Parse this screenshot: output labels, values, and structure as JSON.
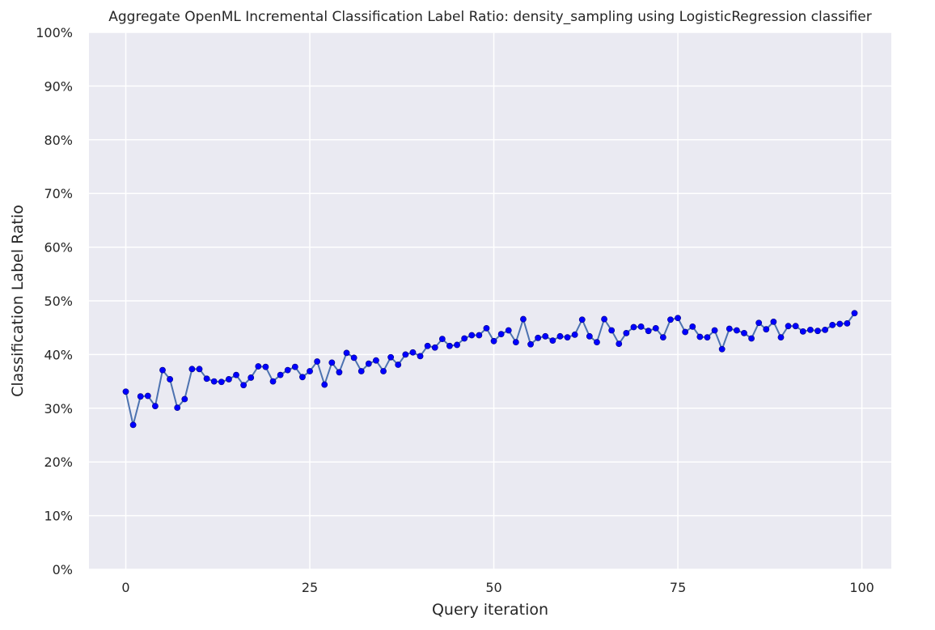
{
  "chart_data": {
    "type": "line",
    "title": "Aggregate OpenML Incremental Classification Label Ratio: density_sampling using LogisticRegression classifier",
    "xlabel": "Query iteration",
    "ylabel": "Classification Label Ratio",
    "xlim": [
      -5,
      104
    ],
    "ylim": [
      0,
      1
    ],
    "x_ticks": [
      0,
      25,
      50,
      75,
      100
    ],
    "y_ticks": [
      0,
      0.1,
      0.2,
      0.3,
      0.4,
      0.5,
      0.6,
      0.7,
      0.8,
      0.9,
      1.0
    ],
    "y_tick_labels": [
      "0%",
      "10%",
      "20%",
      "30%",
      "40%",
      "50%",
      "60%",
      "70%",
      "80%",
      "90%",
      "100%"
    ],
    "grid": true,
    "legend": "none",
    "colors": {
      "background": "#eaeaf2",
      "grid": "#ffffff",
      "line": "#4c72b0",
      "marker": "#0000ff",
      "text": "#262626"
    },
    "series": [
      {
        "x": [
          0,
          1,
          2,
          3,
          4,
          5,
          6,
          7,
          8,
          9,
          10,
          11,
          12,
          13,
          14,
          15,
          16,
          17,
          18,
          19,
          20,
          21,
          22,
          23,
          24,
          25,
          26,
          27,
          28,
          29,
          30,
          31,
          32,
          33,
          34,
          35,
          36,
          37,
          38,
          39,
          40,
          41,
          42,
          43,
          44,
          45,
          46,
          47,
          48,
          49,
          50,
          51,
          52,
          53,
          54,
          55,
          56,
          57,
          58,
          59,
          60,
          61,
          62,
          63,
          64,
          65,
          66,
          67,
          68,
          69,
          70,
          71,
          72,
          73,
          74,
          75,
          76,
          77,
          78,
          79,
          80,
          81,
          82,
          83,
          84,
          85,
          86,
          87,
          88,
          89,
          90,
          91,
          92,
          93,
          94,
          95,
          96,
          97,
          98,
          99
        ],
        "values": [
          0.331,
          0.269,
          0.322,
          0.323,
          0.304,
          0.371,
          0.354,
          0.301,
          0.317,
          0.373,
          0.373,
          0.355,
          0.35,
          0.349,
          0.354,
          0.362,
          0.343,
          0.357,
          0.378,
          0.377,
          0.35,
          0.362,
          0.371,
          0.377,
          0.358,
          0.369,
          0.387,
          0.344,
          0.385,
          0.367,
          0.403,
          0.394,
          0.369,
          0.383,
          0.389,
          0.369,
          0.395,
          0.381,
          0.4,
          0.404,
          0.397,
          0.416,
          0.413,
          0.429,
          0.416,
          0.418,
          0.43,
          0.436,
          0.436,
          0.449,
          0.425,
          0.438,
          0.445,
          0.423,
          0.466,
          0.419,
          0.431,
          0.434,
          0.426,
          0.434,
          0.432,
          0.437,
          0.465,
          0.434,
          0.423,
          0.466,
          0.445,
          0.42,
          0.44,
          0.451,
          0.452,
          0.444,
          0.449,
          0.432,
          0.465,
          0.468,
          0.442,
          0.452,
          0.433,
          0.432,
          0.445,
          0.41,
          0.448,
          0.445,
          0.44,
          0.43,
          0.459,
          0.447,
          0.461,
          0.432,
          0.453,
          0.453,
          0.443,
          0.446,
          0.444,
          0.446,
          0.455,
          0.457,
          0.458,
          0.477
        ]
      }
    ]
  }
}
